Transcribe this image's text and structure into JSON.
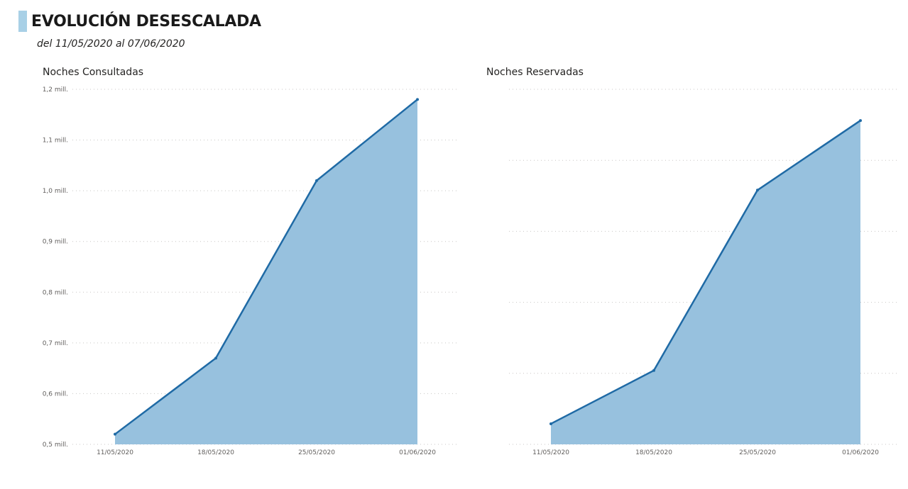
{
  "header": {
    "title": "EVOLUCIÓN DESESCALADA",
    "subtitle": "del 11/05/2020 al 07/06/2020",
    "accent_color": "#a8d0e6"
  },
  "chart_data": [
    {
      "type": "area",
      "title": "Noches Consultadas",
      "x": [
        "11/05/2020",
        "18/05/2020",
        "25/05/2020",
        "01/06/2020"
      ],
      "values": [
        0.52,
        0.67,
        1.02,
        1.18
      ],
      "ylim": [
        0.5,
        1.2
      ],
      "yticks": [
        0.5,
        0.6,
        0.7,
        0.8,
        0.9,
        1.0,
        1.1,
        1.2
      ],
      "ytick_labels": [
        "0,5 mill.",
        "0,6 mill.",
        "0,7 mill.",
        "0,8 mill.",
        "0,9 mill.",
        "1,0 mill.",
        "1,1 mill.",
        "1,2 mill."
      ],
      "grid": true,
      "line_color": "#1f6aa5",
      "fill_color": "#97c1de"
    },
    {
      "type": "area",
      "title": "Noches Reservadas",
      "x": [
        "11/05/2020",
        "18/05/2020",
        "25/05/2020",
        "01/06/2020"
      ],
      "values": [
        0.29,
        1.04,
        3.58,
        4.56
      ],
      "ylim": [
        0,
        5
      ],
      "yticks": [
        0,
        1,
        2,
        3,
        4,
        5
      ],
      "ytick_labels": [],
      "grid": true,
      "line_color": "#1f6aa5",
      "fill_color": "#97c1de"
    }
  ]
}
